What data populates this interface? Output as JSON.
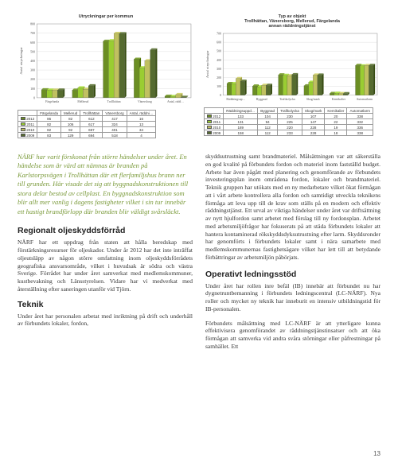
{
  "chart1": {
    "type": "bar",
    "title": "Utryckningar per kommun",
    "ylabel": "Antal utryckningar",
    "ylim": [
      0,
      800
    ],
    "ytick_step": 100,
    "background_color": "#ffffff",
    "grid_color": "#cccccc",
    "categories": [
      "Färgelanda",
      "Mellerud",
      "Trollhättan",
      "Vänersborg",
      "Antal, räddningsuppdrag"
    ],
    "series": [
      {
        "label": "2012",
        "color": "#6b8e23",
        "values": [
          86,
          82,
          612,
          417,
          16
        ]
      },
      {
        "label": "2011",
        "color": "#9acd32",
        "values": [
          82,
          106,
          617,
          324,
          13
        ]
      },
      {
        "label": "2010",
        "color": "#c0c060",
        "values": [
          82,
          92,
          697,
          401,
          34
        ]
      },
      {
        "label": "2009",
        "color": "#556b2f",
        "values": [
          83,
          129,
          694,
          518,
          4
        ]
      }
    ]
  },
  "chart2": {
    "type": "bar",
    "title": "Typ av objekt\nTrollhättan, Vänersborg, Mellerud, Färgelanda\nannan räddningstjänst",
    "ylabel": "Antal utryckningar",
    "ylim": [
      0,
      700
    ],
    "ytick_step": 100,
    "background_color": "#ffffff",
    "grid_color": "#cccccc",
    "categories": [
      "Räddningsuppdrag",
      "Byggnad",
      "Trafikolycka",
      "Skog/mark",
      "Kemikalier",
      "Automatlarm"
    ],
    "series": [
      {
        "label": "2012",
        "color": "#6b8e23",
        "values": [
          133,
          104,
          230,
          107,
          20,
          338
        ]
      },
      {
        "label": "2011",
        "color": "#9acd32",
        "values": [
          131,
          94,
          225,
          147,
          22,
          332
        ]
      },
      {
        "label": "2010",
        "color": "#c0c060",
        "values": [
          189,
          112,
          220,
          228,
          19,
          336
        ]
      },
      {
        "label": "2009",
        "color": "#556b2f",
        "values": [
          158,
          112,
          233,
          228,
          18,
          338
        ]
      }
    ]
  },
  "intro": "NÄRF har varit förskonat från större händelser under året. En händelse som är värd att nämnas är branden på Karlstorpsvägen i Trollhättan där ett flerfamiljshus brann ner till grunden. Här visade det sig att byggnadskonstruktionen till stora delar bestod av cellplast. En byggnadskonstruktion som blir allt mer vanlig i dagens fastigheter vilket i sin tur innebär ett hastigt brandförlopp där branden blir väldigt svårsläckt.",
  "section1": {
    "title": "Regionalt oljeskyddsförråd",
    "body": "NÄRF har ett uppdrag från staten att hålla beredskap med förstärkningsresurser för oljeskador. Under år 2012 har det inte inträffat oljeutsläpp av någon större omfattning inom oljeskyddsförrådets geografiska ansvarsområde, vilket i huvudsak är södra och västra Sverige. Förrådet har under året samverkat med medlemskommuner, kustbevakning och Länsstyrelsen. Vidare har vi medverkat med återställning efter saneringen utanför vid Tjörn."
  },
  "section2": {
    "title": "Teknik",
    "body": "Under året har personalen arbetat med inriktning på drift och underhåll av förbundets lokaler, fordon,"
  },
  "col2_cont": "skyddsutrustning samt brandmateriel. Målsättningen var att säkerställa en god kvalité på förbundets fordon och materiel inom fastställd budget. Arbete har även pågått med planering och genomförande av förbundets investeringsplan inom områdena fordon, lokaler och brandmateriel. Teknik gruppen har utökats med en ny medarbetare vilket ökat förmågan att i vårt arbete kontrollera alla fordon och samtidigt utveckla teknikens förmåga att leva upp till de krav som ställs på en modern och effektiv räddningstjänst. Ett urval av viktiga händelser under året var driftsättning av nytt hjulfordon samt arbetet med förslag till ny fordonsplan. Arbetet med arbetsmiljöfrågor har fokuserats på att städa förbundets lokaler att hantera kontaminerad rökskyddsdyksutrustning efter larm. Skyddsronder har genomförts i förbundets lokaler samt i nära samarbete med medlemskommunernas fastighetsägare vilket har lett till att betydande förbättringar av arbetsmiljön påbörjats.",
  "section3": {
    "title": "Operativt ledningsstöd",
    "body1": "Under året har rollen inre befäl (IB) innebär att förbundet nu har dygnetruntbemanning i förbundets ledningscentral (LC-NÄRF). Nya roller och mycket ny teknik har inneburit en intensiv utbildningstid för IB-personalen.",
    "body2": "Förbundets målsättning med LC-NÄRF är att ytterligare kunna effektivisera genomförandet av räddningstjänstinsatser och att öka förmågan att samverka vid andra svåra störningar eller påfrestningar på samhället. Ett"
  },
  "page_number": "13"
}
